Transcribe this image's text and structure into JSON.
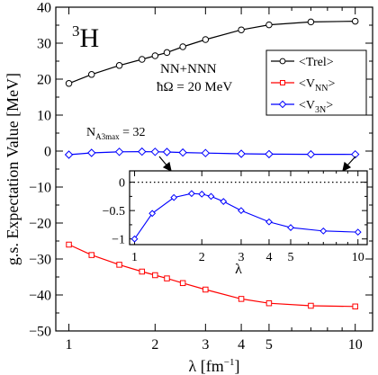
{
  "chart_data": [
    {
      "type": "line",
      "title": "",
      "nucleus_label": {
        "mass_number": "3",
        "element": "H"
      },
      "xlabel": {
        "text": "λ [fm",
        "sup": "−1",
        "tail": "]"
      },
      "ylabel": "g.s. Expectation Value [MeV]",
      "x_scale": "log",
      "xlim": [
        0.9,
        11.5
      ],
      "ylim": [
        -50,
        40
      ],
      "x_ticks": [
        1,
        2,
        3,
        4,
        5,
        10
      ],
      "y_ticks": [
        -50,
        -40,
        -30,
        -20,
        -10,
        0,
        10,
        20,
        30,
        40
      ],
      "x_tick_labels": [
        "1",
        "2",
        "3",
        "4",
        "5",
        "10"
      ],
      "y_tick_labels": [
        "−50",
        "−40",
        "−30",
        "−20",
        "−10",
        "0",
        "10",
        "20",
        "30",
        "40"
      ],
      "annotations": {
        "interaction": "NN+NNN",
        "hbar_omega": "ħΩ = 20 MeV",
        "n_a3max": {
          "main": "N",
          "sub": "A3max",
          "tail": " = 32"
        }
      },
      "legend_position": "top-right",
      "series": [
        {
          "name": "<Trel>",
          "legend": {
            "main": "<Trel>",
            "sub": ""
          },
          "color": "#000000",
          "marker": "circle",
          "x": [
            1.0,
            1.2,
            1.5,
            1.8,
            2.0,
            2.2,
            2.5,
            3.0,
            4.0,
            5.0,
            7.0,
            10.0
          ],
          "y": [
            18.8,
            21.3,
            23.8,
            25.5,
            26.5,
            27.4,
            29.0,
            31.0,
            33.7,
            35.1,
            35.9,
            36.1
          ]
        },
        {
          "name": "<VNN>",
          "legend": {
            "main": "<V",
            "sub": "NN",
            "tail": ">"
          },
          "color": "#ff0000",
          "marker": "square",
          "x": [
            1.0,
            1.2,
            1.5,
            1.8,
            2.0,
            2.2,
            2.5,
            3.0,
            4.0,
            5.0,
            7.0,
            10.0
          ],
          "y": [
            -26.0,
            -28.9,
            -31.6,
            -33.5,
            -34.5,
            -35.4,
            -36.7,
            -38.5,
            -41.1,
            -42.3,
            -43.0,
            -43.2
          ]
        },
        {
          "name": "<V3N>",
          "legend": {
            "main": "<V",
            "sub": "3N",
            "tail": ">"
          },
          "color": "#0000ff",
          "marker": "diamond",
          "x": [
            1.0,
            1.2,
            1.5,
            1.8,
            2.0,
            2.2,
            2.5,
            3.0,
            4.0,
            5.0,
            7.0,
            10.0
          ],
          "y": [
            -1.0,
            -0.5,
            -0.2,
            -0.15,
            -0.2,
            -0.25,
            -0.4,
            -0.55,
            -0.75,
            -0.85,
            -0.9,
            -0.92
          ]
        }
      ]
    },
    {
      "type": "line",
      "title": "",
      "role": "inset",
      "xlabel": "λ",
      "x_scale": "log",
      "xlim": [
        0.95,
        11
      ],
      "ylim": [
        -1.1,
        0.2
      ],
      "x_ticks": [
        1,
        2,
        3,
        4,
        5,
        10
      ],
      "y_ticks": [
        -1,
        -0.5,
        0
      ],
      "x_tick_labels": [
        "1",
        "2",
        "3",
        "4",
        "5",
        "10"
      ],
      "y_tick_labels": [
        "−1",
        "−0.5",
        "0"
      ],
      "zero_line": true,
      "series": [
        {
          "name": "<V3N>",
          "color": "#0000ff",
          "marker": "diamond",
          "x": [
            1.0,
            1.2,
            1.5,
            1.8,
            2.0,
            2.2,
            2.5,
            3.0,
            4.0,
            5.0,
            7.0,
            10.0
          ],
          "y": [
            -1.0,
            -0.55,
            -0.27,
            -0.2,
            -0.21,
            -0.25,
            -0.34,
            -0.5,
            -0.7,
            -0.8,
            -0.86,
            -0.88
          ]
        }
      ]
    }
  ]
}
